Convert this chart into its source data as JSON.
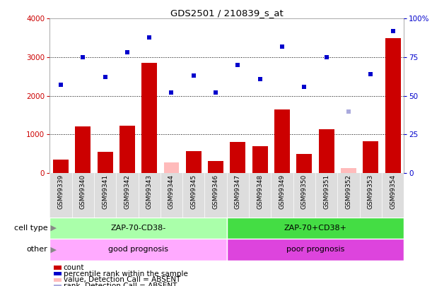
{
  "title": "GDS2501 / 210839_s_at",
  "samples": [
    "GSM99339",
    "GSM99340",
    "GSM99341",
    "GSM99342",
    "GSM99343",
    "GSM99344",
    "GSM99345",
    "GSM99346",
    "GSM99347",
    "GSM99348",
    "GSM99349",
    "GSM99350",
    "GSM99351",
    "GSM99352",
    "GSM99353",
    "GSM99354"
  ],
  "count_values": [
    350,
    1200,
    550,
    1220,
    2850,
    270,
    570,
    310,
    800,
    700,
    1650,
    500,
    1130,
    130,
    820,
    3500
  ],
  "count_absent": [
    false,
    false,
    false,
    false,
    false,
    true,
    false,
    false,
    false,
    false,
    false,
    false,
    false,
    true,
    false,
    false
  ],
  "rank_values": [
    57,
    75,
    62,
    78,
    88,
    52,
    63,
    52,
    70,
    61,
    82,
    56,
    75,
    40,
    64,
    92
  ],
  "rank_absent": [
    false,
    false,
    false,
    false,
    false,
    false,
    false,
    false,
    false,
    false,
    false,
    false,
    false,
    true,
    false,
    false
  ],
  "ylim_left": [
    0,
    4000
  ],
  "ylim_right": [
    0,
    100
  ],
  "yticks_left": [
    0,
    1000,
    2000,
    3000,
    4000
  ],
  "yticks_right": [
    0,
    25,
    50,
    75,
    100
  ],
  "cell_type_labels": [
    "ZAP-70-CD38-",
    "ZAP-70+CD38+"
  ],
  "other_labels": [
    "good prognosis",
    "poor prognosis"
  ],
  "cell_type_colors": [
    "#aaffaa",
    "#44dd44"
  ],
  "other_colors": [
    "#ffaaff",
    "#dd44dd"
  ],
  "split_index": 8,
  "bar_color_normal": "#cc0000",
  "bar_color_absent": "#ffbbbb",
  "rank_color_normal": "#0000cc",
  "rank_color_absent": "#aaaadd",
  "legend_items": [
    {
      "color": "#cc0000",
      "label": "count"
    },
    {
      "color": "#0000cc",
      "label": "percentile rank within the sample"
    },
    {
      "color": "#ffbbbb",
      "label": "value, Detection Call = ABSENT"
    },
    {
      "color": "#aaaadd",
      "label": "rank, Detection Call = ABSENT"
    }
  ]
}
